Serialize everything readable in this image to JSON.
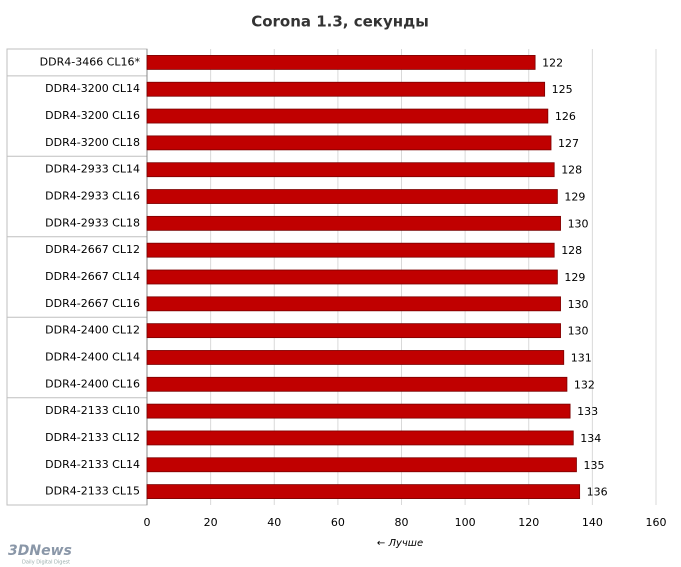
{
  "chart_data": {
    "type": "barh",
    "title": "Corona 1.3, секунды",
    "x_label": "← Лучше",
    "categories": [
      "DDR4-3466 CL16*",
      "DDR4-3200 CL14",
      "DDR4-3200 CL16",
      "DDR4-3200 CL18",
      "DDR4-2933 CL14",
      "DDR4-2933 CL16",
      "DDR4-2933 CL18",
      "DDR4-2667 CL12",
      "DDR4-2667 CL14",
      "DDR4-2667 CL16",
      "DDR4-2400 CL12",
      "DDR4-2400 CL14",
      "DDR4-2400 CL16",
      "DDR4-2133 CL10",
      "DDR4-2133 CL12",
      "DDR4-2133 CL14",
      "DDR4-2133 CL15"
    ],
    "values": [
      122,
      125,
      126,
      127,
      128,
      129,
      130,
      128,
      129,
      130,
      130,
      131,
      132,
      133,
      134,
      135,
      136
    ],
    "color": "#c00000",
    "xlim": [
      0,
      160
    ],
    "xticks": [
      0,
      20,
      40,
      60,
      80,
      100,
      120,
      140,
      160
    ],
    "grid": true
  },
  "logo": "3DNews",
  "logo_tagline": "Daily Digital Digest"
}
